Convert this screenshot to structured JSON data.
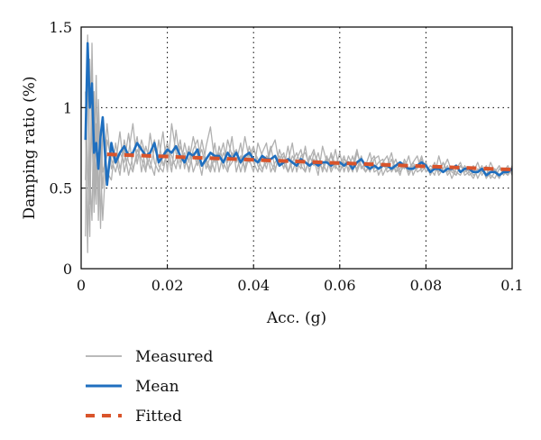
{
  "chart_data": {
    "type": "line",
    "xlabel": "Acc. (g)",
    "ylabel": "Damping ratio (%)",
    "xlim": [
      0,
      0.1
    ],
    "ylim": [
      0,
      1.5
    ],
    "x_ticks": [
      "0",
      "0.02",
      "0.04",
      "0.06",
      "0.08",
      "0.1"
    ],
    "y_ticks": [
      "0",
      "0.5",
      "1",
      "1.5"
    ],
    "x_tick_values": [
      0,
      0.02,
      0.04,
      0.06,
      0.08,
      0.1
    ],
    "y_tick_values": [
      0,
      0.5,
      1,
      1.5
    ],
    "grid": "dotted",
    "legend_position": "bottom-left",
    "x": [
      0.001,
      0.0015,
      0.002,
      0.0025,
      0.003,
      0.0035,
      0.004,
      0.0045,
      0.005,
      0.006,
      0.007,
      0.008,
      0.009,
      0.01,
      0.011,
      0.012,
      0.013,
      0.014,
      0.015,
      0.016,
      0.017,
      0.018,
      0.019,
      0.02,
      0.021,
      0.022,
      0.023,
      0.024,
      0.025,
      0.026,
      0.027,
      0.028,
      0.029,
      0.03,
      0.031,
      0.032,
      0.033,
      0.034,
      0.035,
      0.036,
      0.037,
      0.038,
      0.039,
      0.04,
      0.041,
      0.042,
      0.043,
      0.044,
      0.045,
      0.046,
      0.047,
      0.048,
      0.049,
      0.05,
      0.051,
      0.052,
      0.053,
      0.054,
      0.055,
      0.056,
      0.057,
      0.058,
      0.059,
      0.06,
      0.061,
      0.062,
      0.063,
      0.064,
      0.065,
      0.066,
      0.067,
      0.068,
      0.069,
      0.07,
      0.071,
      0.072,
      0.073,
      0.074,
      0.075,
      0.076,
      0.077,
      0.078,
      0.079,
      0.08,
      0.081,
      0.082,
      0.083,
      0.084,
      0.085,
      0.086,
      0.087,
      0.088,
      0.089,
      0.09,
      0.091,
      0.092,
      0.093,
      0.094,
      0.095,
      0.096,
      0.097,
      0.098,
      0.099,
      0.1
    ],
    "series": [
      {
        "name": "Measured",
        "color": "#b0b0b0",
        "values": [
          0.55,
          1.25,
          0.4,
          1.0,
          0.35,
          0.9,
          0.45,
          0.85,
          0.6,
          0.7,
          0.72,
          0.65,
          0.85,
          0.6,
          0.72,
          0.9,
          0.65,
          0.8,
          0.7,
          0.62,
          0.75,
          0.68,
          0.85,
          0.6,
          0.9,
          0.72,
          0.62,
          0.78,
          0.66,
          0.82,
          0.7,
          0.58,
          0.76,
          0.88,
          0.66,
          0.72,
          0.62,
          0.8,
          0.7,
          0.74,
          0.65,
          0.82,
          0.68,
          0.6,
          0.78,
          0.7,
          0.62,
          0.74,
          0.8,
          0.64,
          0.7,
          0.66,
          0.78,
          0.6,
          0.7,
          0.72,
          0.64,
          0.68,
          0.58,
          0.76,
          0.66,
          0.7,
          0.62,
          0.72,
          0.6,
          0.7,
          0.64,
          0.74,
          0.62,
          0.66,
          0.6,
          0.68,
          0.7,
          0.58,
          0.64,
          0.72,
          0.6,
          0.66,
          0.62,
          0.7,
          0.58,
          0.64,
          0.68,
          0.6,
          0.62,
          0.58,
          0.7,
          0.6,
          0.64,
          0.56,
          0.62,
          0.66,
          0.58,
          0.6,
          0.64,
          0.56,
          0.62,
          0.58,
          0.66,
          0.6,
          0.56,
          0.62,
          0.58,
          0.64
        ]
      },
      {
        "name": "Measured",
        "color": "#b0b0b0",
        "values": [
          0.2,
          1.45,
          0.6,
          0.3,
          1.1,
          0.5,
          0.95,
          0.25,
          0.85,
          0.6,
          0.55,
          0.78,
          0.62,
          0.74,
          0.58,
          0.7,
          0.82,
          0.6,
          0.76,
          0.66,
          0.58,
          0.8,
          0.64,
          0.72,
          0.6,
          0.86,
          0.66,
          0.72,
          0.6,
          0.74,
          0.8,
          0.64,
          0.68,
          0.62,
          0.78,
          0.6,
          0.72,
          0.66,
          0.82,
          0.6,
          0.7,
          0.62,
          0.76,
          0.66,
          0.6,
          0.72,
          0.78,
          0.6,
          0.66,
          0.7,
          0.62,
          0.76,
          0.6,
          0.68,
          0.74,
          0.6,
          0.7,
          0.64,
          0.72,
          0.6,
          0.68,
          0.62,
          0.74,
          0.6,
          0.66,
          0.62,
          0.7,
          0.6,
          0.68,
          0.64,
          0.72,
          0.6,
          0.62,
          0.66,
          0.7,
          0.6,
          0.64,
          0.58,
          0.68,
          0.62,
          0.66,
          0.7,
          0.6,
          0.64,
          0.6,
          0.66,
          0.58,
          0.62,
          0.68,
          0.6,
          0.58,
          0.64,
          0.62,
          0.58,
          0.6,
          0.66,
          0.58,
          0.62,
          0.56,
          0.6,
          0.64,
          0.58,
          0.62,
          0.6
        ]
      },
      {
        "name": "Measured",
        "color": "#b0b0b0",
        "values": [
          0.9,
          0.1,
          1.3,
          0.8,
          0.5,
          1.2,
          0.3,
          0.75,
          0.5,
          0.9,
          0.62,
          0.7,
          0.58,
          0.8,
          0.66,
          0.6,
          0.74,
          0.68,
          0.6,
          0.84,
          0.66,
          0.6,
          0.7,
          0.78,
          0.64,
          0.68,
          0.8,
          0.62,
          0.76,
          0.6,
          0.68,
          0.74,
          0.62,
          0.7,
          0.6,
          0.76,
          0.66,
          0.6,
          0.72,
          0.66,
          0.78,
          0.6,
          0.7,
          0.76,
          0.64,
          0.6,
          0.7,
          0.66,
          0.6,
          0.74,
          0.66,
          0.6,
          0.7,
          0.66,
          0.62,
          0.76,
          0.6,
          0.72,
          0.66,
          0.62,
          0.7,
          0.6,
          0.66,
          0.64,
          0.7,
          0.6,
          0.66,
          0.62,
          0.7,
          0.6,
          0.64,
          0.62,
          0.66,
          0.68,
          0.6,
          0.62,
          0.68,
          0.6,
          0.64,
          0.6,
          0.66,
          0.6,
          0.62,
          0.66,
          0.58,
          0.64,
          0.6,
          0.66,
          0.58,
          0.62,
          0.6,
          0.58,
          0.64,
          0.6,
          0.56,
          0.62,
          0.6,
          0.64,
          0.58,
          0.56,
          0.62,
          0.6,
          0.58,
          0.62
        ]
      },
      {
        "name": "Measured",
        "color": "#b0b0b0",
        "values": [
          1.1,
          0.6,
          0.2,
          1.4,
          0.7,
          0.4,
          1.05,
          0.65,
          0.3,
          0.8,
          0.68,
          0.6,
          0.72,
          0.66,
          0.84,
          0.62,
          0.7,
          0.76,
          0.62,
          0.7,
          0.8,
          0.64,
          0.6,
          0.74,
          0.7,
          0.62,
          0.76,
          0.68,
          0.62,
          0.72,
          0.64,
          0.8,
          0.66,
          0.6,
          0.7,
          0.68,
          0.78,
          0.62,
          0.66,
          0.72,
          0.6,
          0.7,
          0.66,
          0.74,
          0.68,
          0.62,
          0.66,
          0.76,
          0.62,
          0.68,
          0.72,
          0.6,
          0.66,
          0.72,
          0.64,
          0.6,
          0.68,
          0.74,
          0.62,
          0.66,
          0.6,
          0.72,
          0.64,
          0.6,
          0.68,
          0.66,
          0.6,
          0.72,
          0.64,
          0.6,
          0.66,
          0.7,
          0.58,
          0.64,
          0.62,
          0.68,
          0.6,
          0.62,
          0.66,
          0.58,
          0.64,
          0.62,
          0.7,
          0.6,
          0.64,
          0.62,
          0.6,
          0.66,
          0.6,
          0.62,
          0.58,
          0.64,
          0.6,
          0.62,
          0.58,
          0.6,
          0.64,
          0.56,
          0.6,
          0.62,
          0.58,
          0.6,
          0.64,
          0.58
        ]
      },
      {
        "name": "Mean",
        "color": "#1f6fbf",
        "values": [
          0.8,
          1.4,
          1.0,
          1.15,
          0.72,
          0.78,
          0.62,
          0.82,
          0.94,
          0.52,
          0.78,
          0.66,
          0.72,
          0.76,
          0.7,
          0.72,
          0.78,
          0.74,
          0.7,
          0.72,
          0.78,
          0.66,
          0.7,
          0.74,
          0.72,
          0.76,
          0.7,
          0.66,
          0.72,
          0.7,
          0.74,
          0.64,
          0.68,
          0.72,
          0.7,
          0.7,
          0.66,
          0.72,
          0.68,
          0.72,
          0.66,
          0.7,
          0.72,
          0.68,
          0.66,
          0.7,
          0.68,
          0.68,
          0.7,
          0.64,
          0.66,
          0.68,
          0.66,
          0.64,
          0.68,
          0.66,
          0.64,
          0.66,
          0.64,
          0.66,
          0.66,
          0.64,
          0.66,
          0.66,
          0.64,
          0.66,
          0.62,
          0.66,
          0.68,
          0.64,
          0.62,
          0.64,
          0.62,
          0.64,
          0.64,
          0.62,
          0.64,
          0.66,
          0.64,
          0.62,
          0.62,
          0.64,
          0.66,
          0.64,
          0.6,
          0.62,
          0.62,
          0.6,
          0.62,
          0.62,
          0.64,
          0.6,
          0.62,
          0.62,
          0.6,
          0.6,
          0.62,
          0.58,
          0.6,
          0.6,
          0.58,
          0.6,
          0.6,
          0.62
        ]
      },
      {
        "name": "Fitted",
        "color": "#d9542b",
        "x": [
          0.006,
          0.1
        ],
        "values": [
          0.71,
          0.615
        ]
      }
    ]
  }
}
